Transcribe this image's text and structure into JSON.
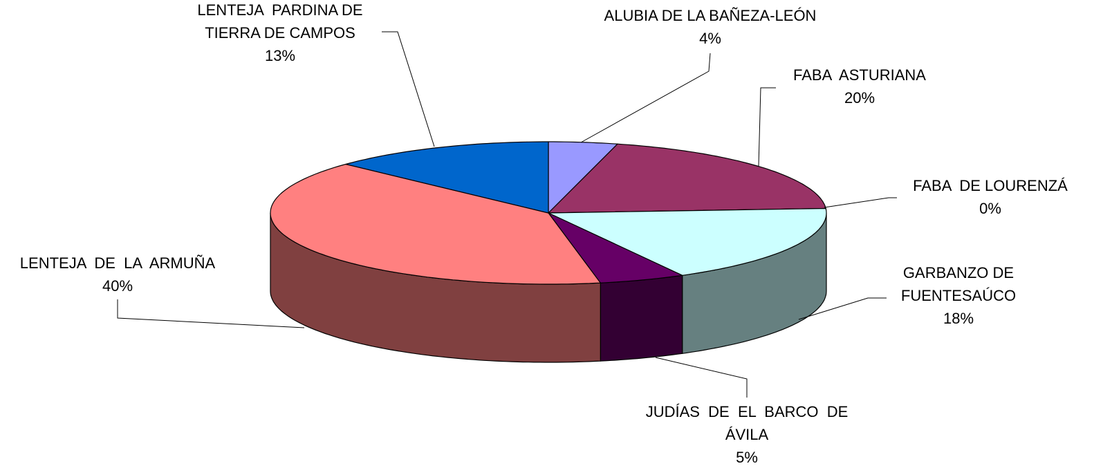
{
  "chart_data": {
    "type": "pie3d",
    "categories": [
      "ALUBIA DE LA BAÑEZA-LEÓN",
      "FABA  ASTURIANA",
      "FABA  DE LOURENZÁ",
      "GARBANZO DE\nFUENTESAÚCO",
      "JUDÍAS  DE  EL  BARCO  DE\nÁVILA",
      "LENTEJA  DE  LA  ARMUÑA",
      "LENTEJA  PARDINA DE\nTIERRA DE CAMPOS"
    ],
    "values": [
      4,
      20,
      0,
      18,
      5,
      40,
      13
    ],
    "value_labels": [
      "4%",
      "20%",
      "0%",
      "18%",
      "5%",
      "40%",
      "13%"
    ],
    "colors": [
      "#9999ff",
      "#993366",
      "#ffffcc",
      "#ccffff",
      "#660066",
      "#ff8080",
      "#0066cc"
    ]
  }
}
